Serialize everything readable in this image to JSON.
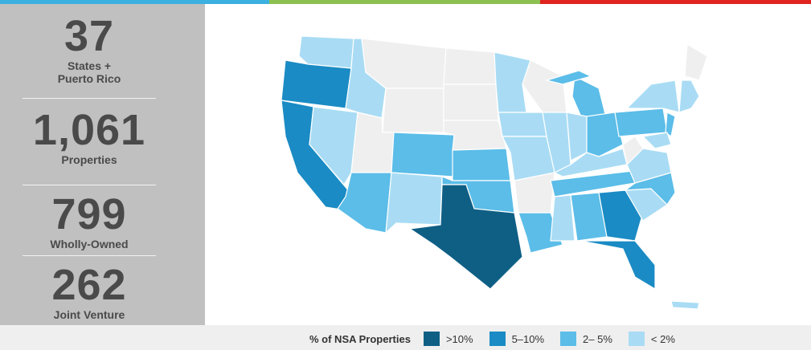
{
  "stats": [
    {
      "value": "37",
      "label": "States + Puerto Rico"
    },
    {
      "value": "1,061",
      "label": "Properties"
    },
    {
      "value": "799",
      "label": "Wholly-Owned"
    },
    {
      "value": "262",
      "label": "Joint Venture"
    }
  ],
  "legend": {
    "title": "% of NSA Properties",
    "items": [
      {
        "label": ">10%",
        "color": "#0f5f85"
      },
      {
        "label": "5–10%",
        "color": "#1a8bc4"
      },
      {
        "label": "2– 5%",
        "color": "#5bbde8"
      },
      {
        "label": "< 2%",
        "color": "#a9dcf4"
      }
    ]
  }
}
